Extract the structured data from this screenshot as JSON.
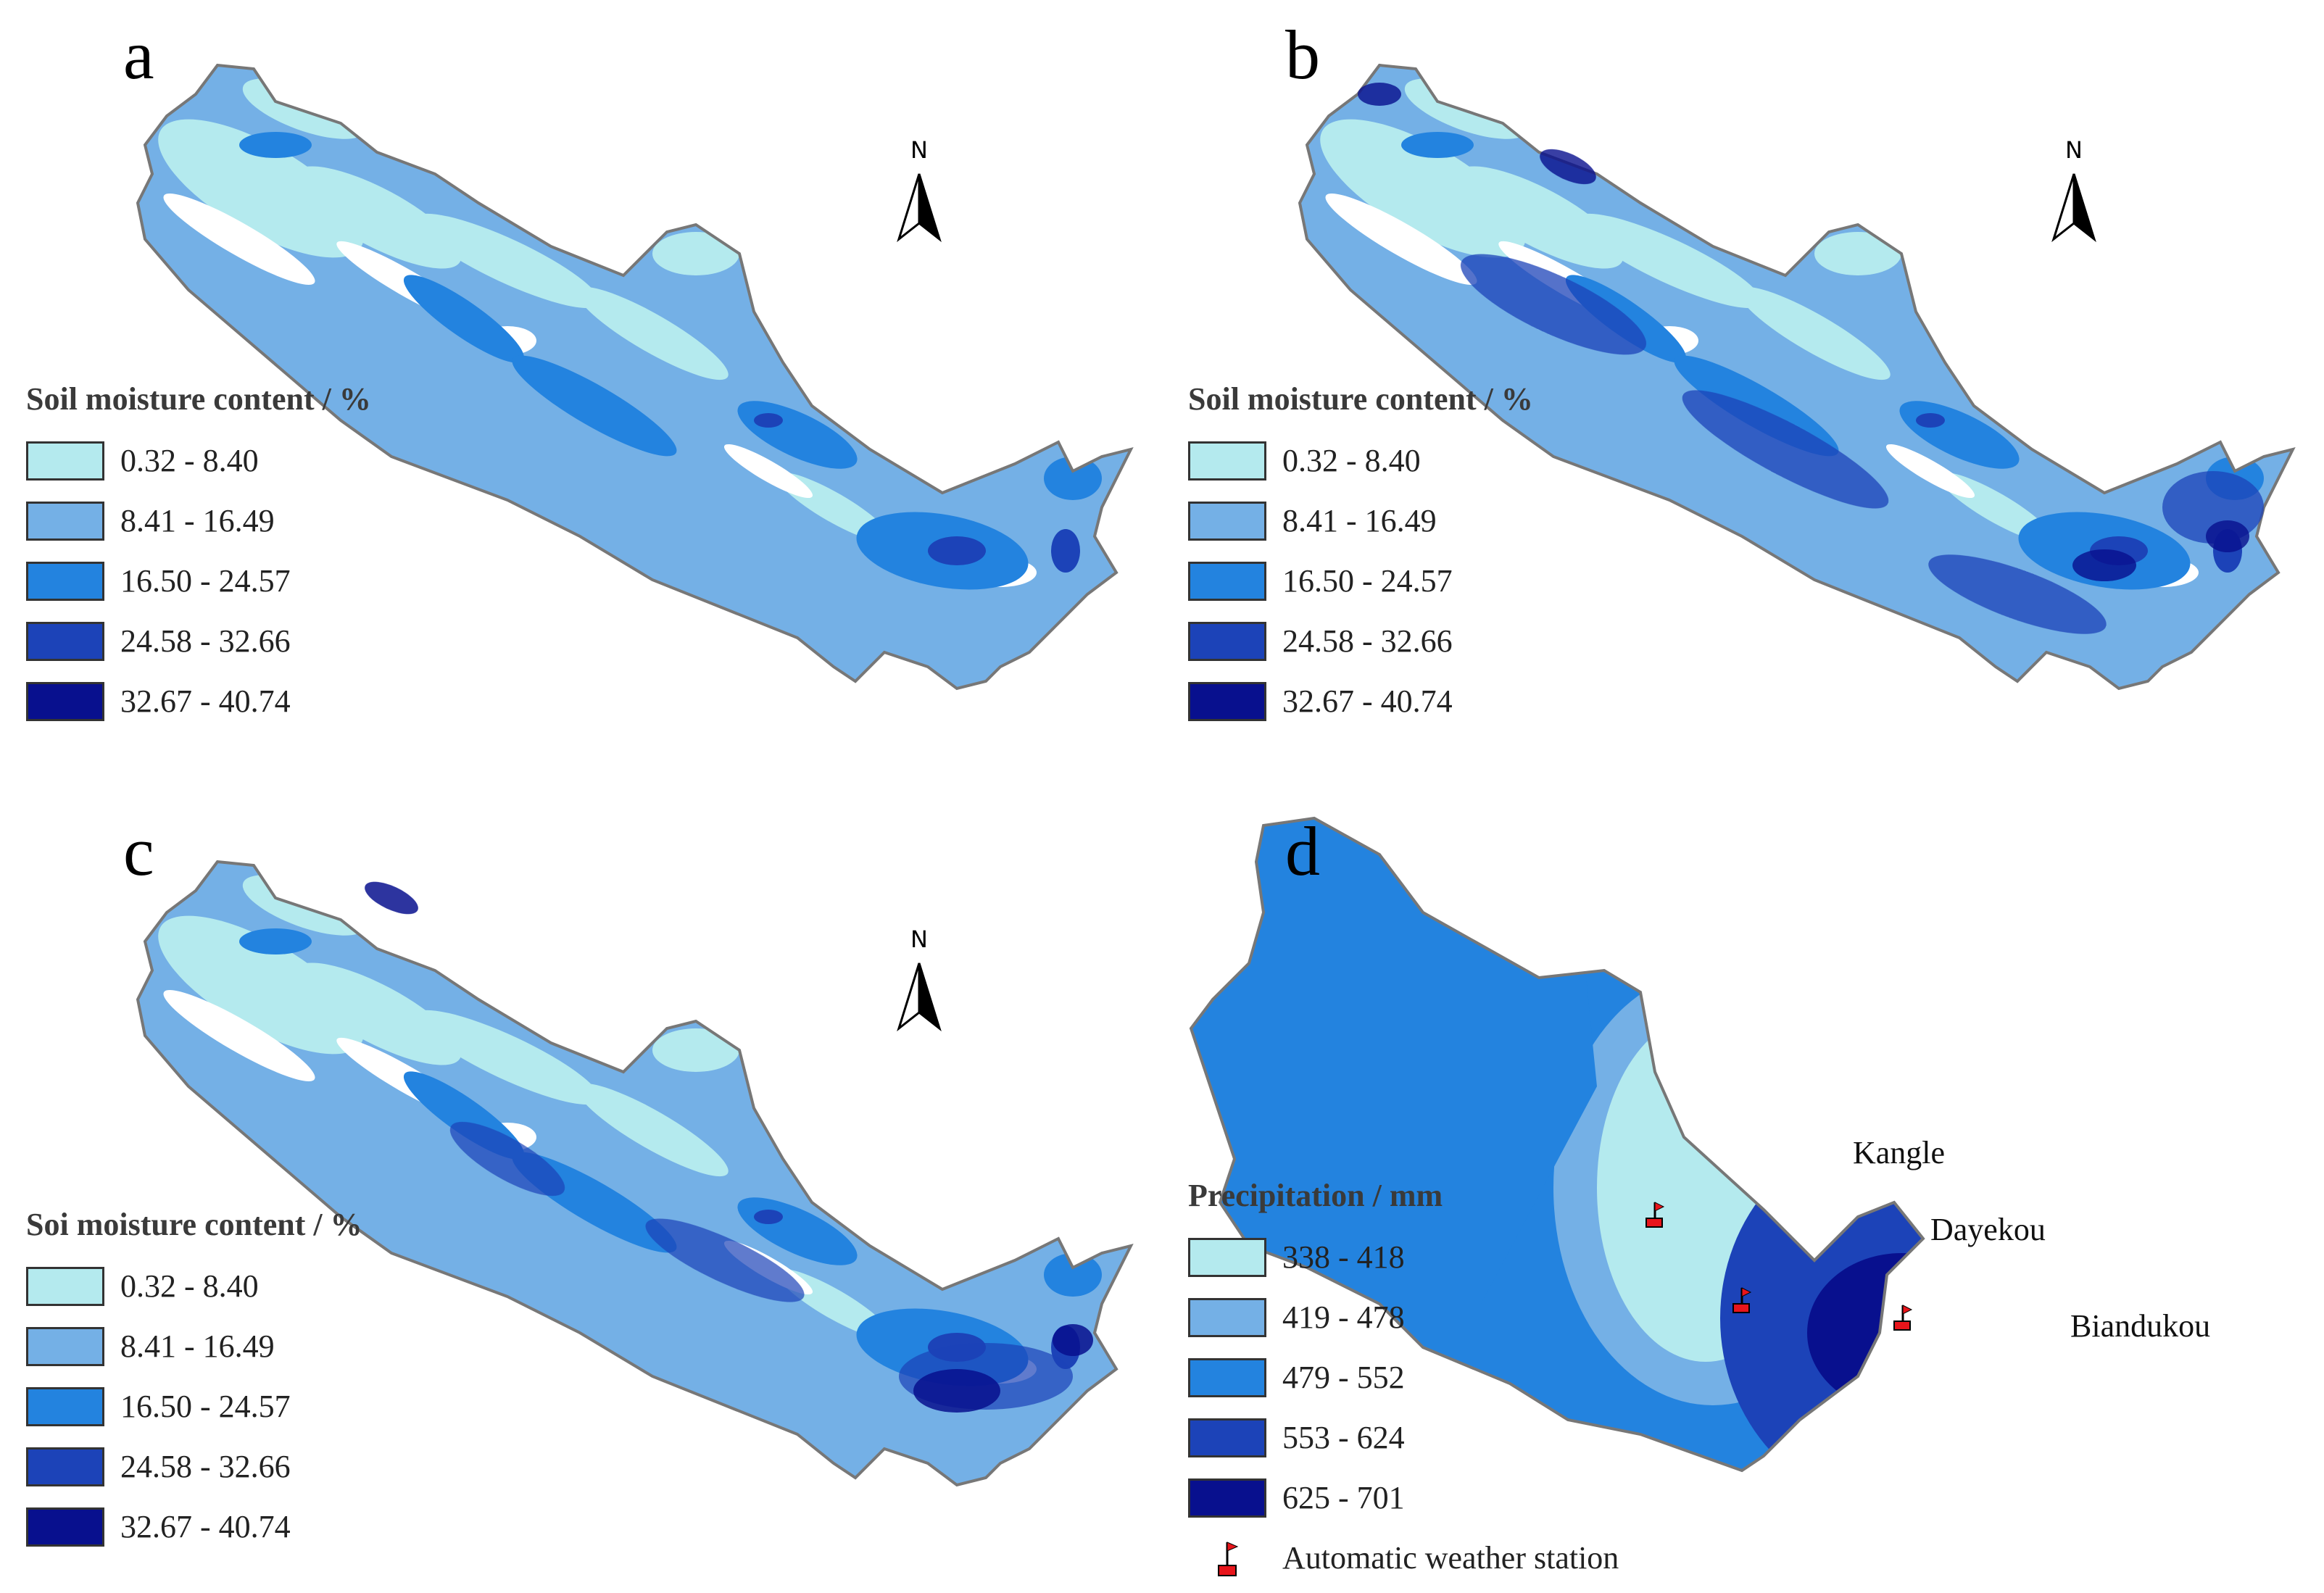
{
  "panels": [
    {
      "letter": "a",
      "legend_title": "Soil moisture content / %"
    },
    {
      "letter": "b",
      "legend_title": "Soil moisture content / %"
    },
    {
      "letter": "c",
      "legend_title": "Soi moisture content / %"
    },
    {
      "letter": "d",
      "legend_title": "Precipitation / mm"
    }
  ],
  "north_label": "N",
  "soil_classes": [
    "0.32 - 8.40",
    "8.41 - 16.49",
    "16.50 - 24.57",
    "24.58 - 32.66",
    "32.67 - 40.74"
  ],
  "precip_classes": [
    "338 - 418",
    "419 - 478",
    "479 - 552",
    "553 - 624",
    "625 - 701"
  ],
  "class_colors": [
    "#b4eaee",
    "#74b0e6",
    "#2383df",
    "#1c43b8",
    "#08108e"
  ],
  "stations": [
    "Kangle",
    "Dayekou",
    "Biandukou"
  ],
  "station_legend_label": "Automatic weather station"
}
